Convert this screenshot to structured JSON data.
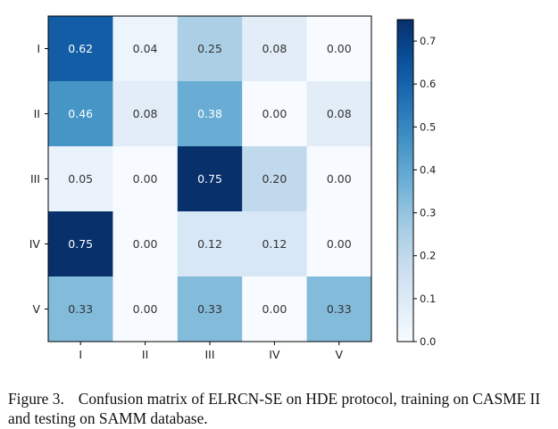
{
  "chart_data": {
    "type": "heatmap",
    "row_labels": [
      "I",
      "II",
      "III",
      "IV",
      "V"
    ],
    "col_labels": [
      "I",
      "II",
      "III",
      "IV",
      "V"
    ],
    "values": [
      [
        0.62,
        0.04,
        0.25,
        0.08,
        0.0
      ],
      [
        0.46,
        0.08,
        0.38,
        0.0,
        0.08
      ],
      [
        0.05,
        0.0,
        0.75,
        0.2,
        0.0
      ],
      [
        0.75,
        0.0,
        0.12,
        0.12,
        0.0
      ],
      [
        0.33,
        0.0,
        0.33,
        0.0,
        0.33
      ]
    ],
    "value_format": "2-decimals",
    "colormap": "Blues",
    "vmin": 0.0,
    "vmax": 0.75,
    "colorbar_ticks": [
      0.0,
      0.1,
      0.2,
      0.3,
      0.4,
      0.5,
      0.6,
      0.7
    ],
    "colorbar_tick_labels": [
      "0.0",
      "0.1",
      "0.2",
      "0.3",
      "0.4",
      "0.5",
      "0.6",
      "0.7"
    ],
    "text_color_dark": "#333333",
    "text_color_light": "#ffffff",
    "title": "",
    "xlabel": "",
    "ylabel": ""
  },
  "caption": {
    "label": "Figure 3.",
    "text": "Confusion matrix of ELRCN-SE on HDE protocol, training on CASME II and testing on SAMM database."
  }
}
